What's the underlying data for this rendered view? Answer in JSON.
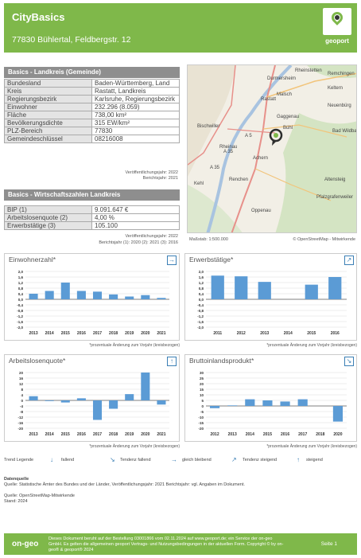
{
  "header": {
    "title": "CityBasics",
    "address": "77830 Bühlertal, Feldbergstr. 12",
    "logo_label": "geoport"
  },
  "basics": {
    "title": "Basics - Landkreis (Gemeinde)",
    "rows": [
      {
        "k": "Bundesland",
        "v": "Baden-Württemberg, Land"
      },
      {
        "k": "Kreis",
        "v": "Rastatt, Landkreis"
      },
      {
        "k": "Regierungsbezirk",
        "v": "Karlsruhe, Regierungsbezirk"
      },
      {
        "k": "Einwohner",
        "v": "232.296 (8.059)"
      },
      {
        "k": "Fläche",
        "v": "738,00 km²"
      },
      {
        "k": "Bevölkerungsdichte",
        "v": "315 EW/km²"
      },
      {
        "k": "PLZ-Bereich",
        "v": "77830"
      },
      {
        "k": "Gemeindeschlüssel",
        "v": "08216008"
      }
    ],
    "note1": "Veröffentlichungsjahr: 2022",
    "note2": "Berichtsjahr: 2021"
  },
  "wirtschaft": {
    "title": "Basics - Wirtschaftszahlen Landkreis",
    "rows": [
      {
        "k": "BIP (1)",
        "v": "9.091.647 €"
      },
      {
        "k": "Arbeitslosenquote (2)",
        "v": "4,00 %"
      },
      {
        "k": "Erwerbstätige (3)",
        "v": "105.100"
      }
    ],
    "note1": "Veröffentlichungsjahr: 2022",
    "note2": "Berichtsjahr (1): 2020 (2): 2021 (3): 2016"
  },
  "map": {
    "scale": "Maßstab: 1:500.000",
    "credit": "© OpenStreetMap - Mitwirkende",
    "labels": [
      "Rheinstetten",
      "Durmersheim",
      "Rastatt",
      "Malsch",
      "Gaggenau",
      "Bischwiller",
      "Bühl",
      "Rheinau",
      "Achern",
      "Renchen",
      "Kehl",
      "Oppenau",
      "Remchingen",
      "Keltern",
      "Neuenbürg",
      "Bad Wildbad",
      "Altensteig",
      "Pfalzgrafenweiler",
      "A 5",
      "A 35",
      "A 35"
    ]
  },
  "chart_note": "*prozentuale Änderung zum Vorjahr (kreisbezogen)",
  "chart_data": [
    {
      "type": "bar",
      "title": "Einwohnerzahl*",
      "trend_icon": "arrow-right-icon",
      "categories": [
        "2013",
        "2014",
        "2015",
        "2016",
        "2017",
        "2018",
        "2019",
        "2020",
        "2021"
      ],
      "values": [
        0.4,
        0.6,
        1.2,
        0.6,
        0.55,
        0.35,
        0.2,
        0.3,
        0.1
      ],
      "ylim": [
        -2.0,
        2.0
      ],
      "yticks": [
        "2,0",
        "1,6",
        "1,2",
        "0,8",
        "0,4",
        "0,0",
        "-0,4",
        "-0,8",
        "-1,2",
        "-1,6",
        "-2,0"
      ]
    },
    {
      "type": "bar",
      "title": "Erwerbstätige*",
      "trend_icon": "arrow-up-right-icon",
      "categories": [
        "2011",
        "2012",
        "2013",
        "2014",
        "2015",
        "2016"
      ],
      "values": [
        1.7,
        1.65,
        1.25,
        0.0,
        1.05,
        1.6
      ],
      "ylim": [
        -2.0,
        2.0
      ],
      "yticks": [
        "2,0",
        "1,6",
        "1,2",
        "0,8",
        "0,4",
        "0,0",
        "-0,4",
        "-0,8",
        "-1,2",
        "-1,6",
        "-2,0"
      ]
    },
    {
      "type": "bar",
      "title": "Arbeitslosenquote*",
      "trend_icon": "arrow-up-icon",
      "categories": [
        "2013",
        "2014",
        "2015",
        "2016",
        "2017",
        "2018",
        "2019",
        "2020",
        "2021"
      ],
      "values": [
        3,
        -0.5,
        -1.5,
        1.5,
        -14,
        -6,
        4.5,
        20,
        -3
      ],
      "ylim": [
        -20,
        20
      ],
      "yticks": [
        "20",
        "16",
        "12",
        "8",
        "4",
        "0",
        "-4",
        "-8",
        "-12",
        "-16",
        "-20"
      ]
    },
    {
      "type": "bar",
      "title": "Bruttoinlandsprodukt*",
      "trend_icon": "arrow-down-right-icon",
      "categories": [
        "2012",
        "2013",
        "2014",
        "2015",
        "2016",
        "2017",
        "2018",
        "2020"
      ],
      "values": [
        -2,
        0.5,
        6,
        5,
        4,
        6,
        0,
        -14
      ],
      "ylim": [
        -20,
        30
      ],
      "yticks": [
        "30",
        "25",
        "20",
        "15",
        "10",
        "5",
        "0",
        "-5",
        "-10",
        "-15",
        "-20"
      ]
    }
  ],
  "legend": {
    "title": "Trend Legende",
    "items": [
      "fallend",
      "Tendenz fallend",
      "gleich bleibend",
      "Tendenz steigend",
      "steigend"
    ]
  },
  "sources": {
    "title": "Datenquelle",
    "line1": "Quelle: Statistische Ämter des Bundes und der Länder, Veröffentlichungsjahr: 2021 Berichtsjahr: vgl. Angaben im Dokument.",
    "line2": "Quelle: OpenStreetMap-Mitwirkende",
    "line3": "Stand: 2024"
  },
  "footer": {
    "brand": "on-geo",
    "text": "Dieses Dokument beruht auf der Bestellung 03001866 vom 02.11.2024 auf www.geoport.de; ein Service der on-geo GmbH. Es gelten die allgemeinen geoport Vertrags- und Nutzungsbedingungen in der aktuellen Form. Copyright © by on-geo® & geoport® 2024",
    "page": "Seite 1"
  },
  "colors": {
    "green": "#7fb84a",
    "bar": "#5b9bd5",
    "arrow": "#3b7fb5"
  }
}
